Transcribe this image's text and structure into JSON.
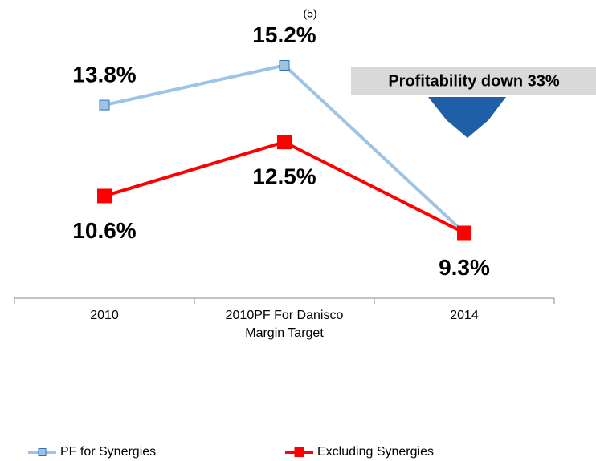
{
  "chart_data": {
    "type": "line",
    "categories": [
      "2010",
      "2010PF For Danisco Margin Target",
      "2014"
    ],
    "series": [
      {
        "name": "PF for Synergies",
        "color": "#9dc3e6",
        "values": [
          13.8,
          15.2,
          9.3
        ],
        "value_labels": [
          "13.8%",
          "15.2%",
          null
        ]
      },
      {
        "name": "Excluding Synergies",
        "color": "#ff0000",
        "values": [
          10.6,
          12.5,
          9.3
        ],
        "value_labels": [
          "10.6%",
          "12.5%",
          "9.3%"
        ]
      }
    ],
    "ylim": [
      7,
      17.5
    ],
    "annotations": [
      "(5)",
      "Profitability down 33%"
    ]
  }
}
